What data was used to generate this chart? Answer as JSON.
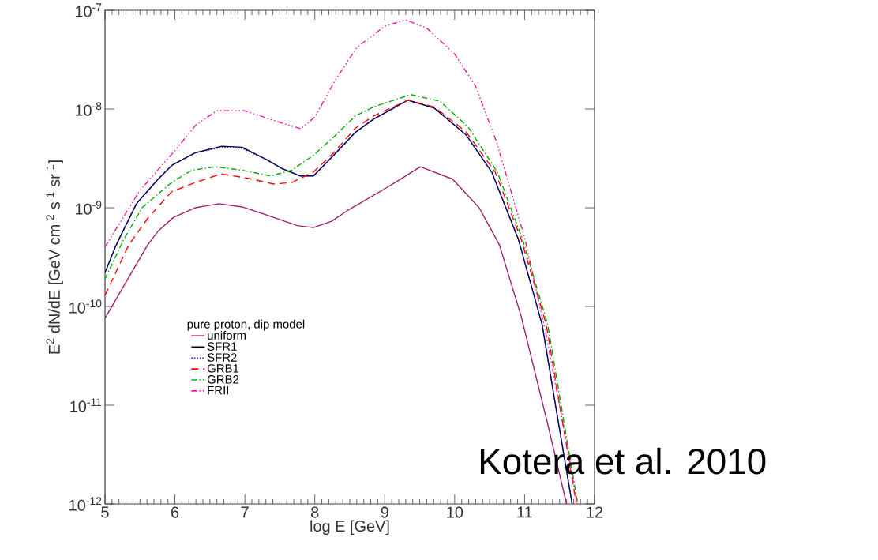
{
  "chart_data": {
    "type": "line",
    "xlabel": "log E [GeV]",
    "ylabel": "E$^{2}$ dN/dE [GeV cm$^{-2}$ s$^{-1}$ sr$^{-1}$]",
    "legend_title": "pure proton, dip model",
    "annotations": [
      "Kotera et al. 2010"
    ],
    "log": "y",
    "legend": "bottom left",
    "xlim": [
      5,
      12
    ],
    "xticks": [
      5,
      6,
      7,
      8,
      9,
      10,
      11,
      12
    ],
    "ylim": [
      1e-12,
      1e-07
    ],
    "yticks": [
      {
        "value": 1e-12,
        "label": "10$^{-12}$"
      },
      {
        "value": 1e-11,
        "label": "10$^{-11}$"
      },
      {
        "value": 1e-10,
        "label": "10$^{-10}$"
      },
      {
        "value": 1e-09,
        "label": "10$^{-9}$"
      },
      {
        "value": 1e-08,
        "label": "10$^{-8}$"
      },
      {
        "value": 1e-07,
        "label": "10$^{-7}$"
      }
    ],
    "series": [
      {
        "name": "uniform",
        "color": "#a0206a",
        "line_style": "solid",
        "x": [
          5,
          5.61,
          5.76,
          5.98,
          6.29,
          6.63,
          6.96,
          7.3,
          7.75,
          7.98,
          8.24,
          8.46,
          9.03,
          9.51,
          9.97,
          10.35,
          10.64,
          10.95,
          11.32,
          11.6
        ],
        "values": [
          7.6e-11,
          4.2e-10,
          5.8e-10,
          8e-10,
          1e-09,
          1.1e-09,
          1.02e-09,
          8.5e-10,
          6.6e-10,
          6.3e-10,
          7.3e-10,
          9.3e-10,
          1.6e-09,
          2.6e-09,
          1.95e-09,
          1e-09,
          4.2e-10,
          8e-11,
          6.9e-12,
          1e-12
        ]
      },
      {
        "name": "SFR1",
        "color": "#000000",
        "line_style": "solid",
        "x": [
          5,
          5.16,
          5.45,
          5.76,
          5.96,
          6.29,
          6.67,
          6.96,
          7.3,
          7.53,
          7.79,
          7.98,
          8.27,
          8.58,
          8.84,
          9.33,
          9.71,
          10.16,
          10.53,
          10.91,
          11.25,
          11.48,
          11.68
        ],
        "values": [
          2.2e-10,
          4.2e-10,
          1.1e-09,
          1.95e-09,
          2.7e-09,
          3.6e-09,
          4.2e-09,
          4.1e-09,
          3.1e-09,
          2.5e-09,
          2.1e-09,
          2.1e-09,
          3.4e-09,
          5.8e-09,
          7.9e-09,
          1.23e-08,
          1.02e-08,
          5.5e-09,
          2.3e-09,
          4.8e-10,
          6.6e-11,
          6.9e-12,
          1e-12
        ]
      },
      {
        "name": "SFR2",
        "color": "#0000ff",
        "line_style": "dotted",
        "x": [
          5,
          5.16,
          5.45,
          5.76,
          5.96,
          6.29,
          6.67,
          6.96,
          7.3,
          7.53,
          7.79,
          7.98,
          8.27,
          8.58,
          8.84,
          9.33,
          9.71,
          10.16,
          10.53,
          10.91,
          11.25,
          11.48,
          11.68
        ],
        "values": [
          2.2e-10,
          4.2e-10,
          1.1e-09,
          1.95e-09,
          2.7e-09,
          3.6e-09,
          4.1e-09,
          4e-09,
          3.1e-09,
          2.5e-09,
          2.1e-09,
          2.1e-09,
          3.4e-09,
          5.8e-09,
          7.9e-09,
          1.23e-08,
          1.02e-08,
          5.5e-09,
          2.3e-09,
          4.8e-10,
          6.6e-11,
          6.9e-12,
          1e-12
        ]
      },
      {
        "name": "GRB1",
        "color": "#ff0000",
        "line_style": "dashed",
        "x": [
          5,
          5.34,
          5.61,
          5.95,
          6.29,
          6.66,
          7.03,
          7.41,
          7.67,
          7.98,
          8.27,
          8.58,
          8.84,
          9.33,
          9.71,
          10.16,
          10.58,
          10.95,
          11.31,
          11.54,
          11.74
        ],
        "values": [
          1.3e-10,
          4.2e-10,
          7.8e-10,
          1.45e-09,
          1.8e-09,
          2.2e-09,
          2e-09,
          1.74e-09,
          1.8e-09,
          2.3e-09,
          3.6e-09,
          6.4e-09,
          8.5e-09,
          1.23e-08,
          1.05e-08,
          5.9e-09,
          2.3e-09,
          4.8e-10,
          6.6e-11,
          6.9e-12,
          1e-12
        ]
      },
      {
        "name": "GRB2",
        "color": "#00aa00",
        "line_style": "dashdot",
        "x": [
          5,
          5.27,
          5.53,
          5.95,
          6.24,
          6.58,
          6.96,
          7.37,
          7.67,
          7.98,
          8.27,
          8.58,
          8.84,
          9.37,
          9.79,
          10.19,
          10.61,
          10.97,
          11.33,
          11.56,
          11.76
        ],
        "values": [
          1.9e-10,
          4.8e-10,
          1e-09,
          1.8e-09,
          2.4e-09,
          2.6e-09,
          2.4e-09,
          2.1e-09,
          2.4e-09,
          3.4e-09,
          5.2e-09,
          8.5e-09,
          1.05e-08,
          1.4e-08,
          1.2e-08,
          6.6e-09,
          2.3e-09,
          4.8e-10,
          6.6e-11,
          6.9e-12,
          1e-12
        ]
      },
      {
        "name": "FRII",
        "color": "#ff1493",
        "line_style": "dashdotdot",
        "x": [
          5,
          5.5,
          6,
          6.3,
          6.6,
          7.0,
          7.4,
          7.8,
          8.0,
          8.3,
          8.6,
          9.0,
          9.3,
          9.6,
          10.0,
          10.3,
          10.6,
          11.0,
          11.3,
          11.6,
          11.75
        ],
        "values": [
          4e-10,
          1.5e-09,
          3.8e-09,
          6.9e-09,
          9.6e-09,
          9.6e-09,
          7.7e-09,
          6.3e-09,
          8.3e-09,
          2e-08,
          4.2e-08,
          6.9e-08,
          8e-08,
          6.6e-08,
          3.6e-08,
          1.7e-08,
          4.6e-09,
          5e-10,
          5.5e-11,
          4.2e-12,
          1e-12
        ]
      }
    ]
  }
}
